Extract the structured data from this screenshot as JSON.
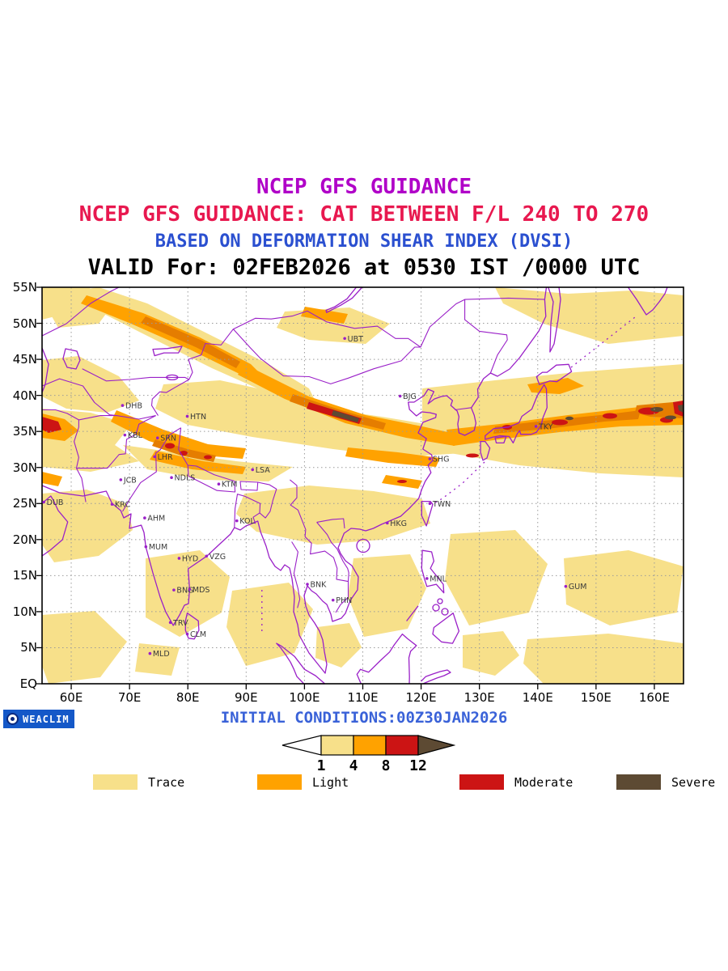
{
  "titles": {
    "line1": "NCEP GFS GUIDANCE",
    "line2": "NCEP GFS GUIDANCE: CAT BETWEEN F/L 240 TO 270",
    "line3": "BASED ON DEFORMATION SHEAR INDEX (DVSI)",
    "line4": "VALID For: 02FEB2026 at 0530 IST /0000 UTC"
  },
  "colors": {
    "title1": "#b000c8",
    "title2": "#e8184f",
    "title3": "#2b50d0",
    "title4": "#000000",
    "map_outline": "#9a20c8",
    "grid": "#9a9a9a",
    "trace": "#f7e08a",
    "light": "#ffa200",
    "amber": "#e57d00",
    "moderate": "#cc1414",
    "severe": "#5d4a33",
    "footer_blue": "#3a62d8",
    "logo_bg": "#1458c8",
    "station_text": "#3a3a3a"
  },
  "map": {
    "lon_range": [
      55,
      165
    ],
    "lat_range": [
      0,
      55
    ],
    "x_axis_labels": [
      "60E",
      "70E",
      "80E",
      "90E",
      "100E",
      "110E",
      "120E",
      "130E",
      "140E",
      "150E",
      "160E"
    ],
    "y_axis_labels": [
      "55N",
      "50N",
      "45N",
      "40N",
      "35N",
      "30N",
      "25N",
      "20N",
      "15N",
      "10N",
      "5N",
      "EQ"
    ],
    "stations": [
      {
        "code": "UBT",
        "lon": 106.9,
        "lat": 47.9
      },
      {
        "code": "BJG",
        "lon": 116.4,
        "lat": 39.9
      },
      {
        "code": "TKY",
        "lon": 139.7,
        "lat": 35.7
      },
      {
        "code": "SHG",
        "lon": 121.5,
        "lat": 31.2
      },
      {
        "code": "DHB",
        "lon": 68.8,
        "lat": 38.6
      },
      {
        "code": "HTN",
        "lon": 79.9,
        "lat": 37.1
      },
      {
        "code": "KBL",
        "lon": 69.2,
        "lat": 34.5
      },
      {
        "code": "SRN",
        "lon": 74.8,
        "lat": 34.1
      },
      {
        "code": "LHR",
        "lon": 74.3,
        "lat": 31.5
      },
      {
        "code": "JCB",
        "lon": 68.5,
        "lat": 28.3
      },
      {
        "code": "NDLS",
        "lon": 77.2,
        "lat": 28.6
      },
      {
        "code": "KTM",
        "lon": 85.3,
        "lat": 27.7
      },
      {
        "code": "LSA",
        "lon": 91.1,
        "lat": 29.7
      },
      {
        "code": "DUB",
        "lon": 55.3,
        "lat": 25.2
      },
      {
        "code": "KRC",
        "lon": 67.0,
        "lat": 24.9
      },
      {
        "code": "AHM",
        "lon": 72.6,
        "lat": 23.0
      },
      {
        "code": "TWN",
        "lon": 121.5,
        "lat": 25.0
      },
      {
        "code": "HKG",
        "lon": 114.2,
        "lat": 22.3
      },
      {
        "code": "KOL",
        "lon": 88.4,
        "lat": 22.6
      },
      {
        "code": "MUM",
        "lon": 72.8,
        "lat": 19.0
      },
      {
        "code": "HYD",
        "lon": 78.5,
        "lat": 17.4
      },
      {
        "code": "VZG",
        "lon": 83.2,
        "lat": 17.7
      },
      {
        "code": "BNK",
        "lon": 100.5,
        "lat": 13.8
      },
      {
        "code": "MNL",
        "lon": 121.0,
        "lat": 14.6
      },
      {
        "code": "GUM",
        "lon": 144.8,
        "lat": 13.5
      },
      {
        "code": "BNG",
        "lon": 77.6,
        "lat": 13.0
      },
      {
        "code": "MDS",
        "lon": 80.3,
        "lat": 13.1
      },
      {
        "code": "PHN",
        "lon": 104.9,
        "lat": 11.6
      },
      {
        "code": "TRV",
        "lon": 77.0,
        "lat": 8.5
      },
      {
        "code": "CLM",
        "lon": 79.9,
        "lat": 6.9
      },
      {
        "code": "MLD",
        "lon": 73.5,
        "lat": 4.2
      }
    ]
  },
  "footer": {
    "logo_text": "WEACLIM",
    "initial_conditions": "INITIAL CONDITIONS:00Z30JAN2026"
  },
  "colorbar": {
    "tick_values": [
      "1",
      "4",
      "8",
      "12"
    ]
  },
  "legend": [
    {
      "label": "Trace",
      "color_key": "trace"
    },
    {
      "label": "Light",
      "color_key": "light"
    },
    {
      "label": "Moderate",
      "color_key": "moderate"
    },
    {
      "label": "Severe",
      "color_key": "severe"
    }
  ]
}
